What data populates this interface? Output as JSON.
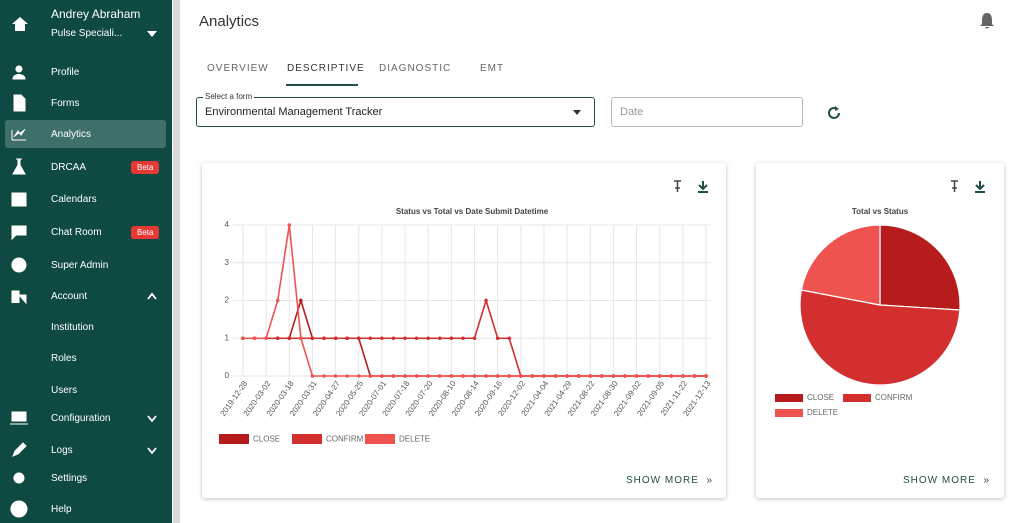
{
  "user": {
    "name": "Andrey Abraham",
    "org": "Pulse Speciali..."
  },
  "nav": [
    {
      "label": "Profile"
    },
    {
      "label": "Forms"
    },
    {
      "label": "Analytics",
      "active": true
    },
    {
      "label": "DRCAA",
      "badge": "Beta"
    },
    {
      "label": "Calendars"
    },
    {
      "label": "Chat Room",
      "badge": "Beta"
    },
    {
      "label": "Super Admin"
    },
    {
      "label": "Account",
      "expanded": true,
      "children": [
        {
          "label": "Institution"
        },
        {
          "label": "Roles"
        },
        {
          "label": "Users"
        }
      ]
    },
    {
      "label": "Configuration",
      "expanded": false
    },
    {
      "label": "Logs",
      "expanded": false
    },
    {
      "label": "Settings"
    },
    {
      "label": "Help"
    }
  ],
  "header": {
    "title": "Analytics"
  },
  "tabs": [
    {
      "label": "OVERVIEW"
    },
    {
      "label": "DESCRIPTIVE",
      "active": true
    },
    {
      "label": "DIAGNOSTIC"
    },
    {
      "label": "EMT"
    }
  ],
  "form": {
    "select_label": "Select a form",
    "select_value": "Environmental Management Tracker",
    "date_placeholder": "Date"
  },
  "cards": [
    {
      "action": "SHOW MORE"
    },
    {
      "action": "SHOW MORE"
    }
  ],
  "chart_data": [
    {
      "type": "line",
      "title": "Status vs Total vs Date Submit Datetime",
      "categories": [
        "2019-12-28",
        null,
        "2020-03-02",
        null,
        "2020-03-18",
        null,
        "2020-03-31",
        null,
        "2020-04-27",
        null,
        "2020-05-25",
        null,
        "2020-07-01",
        null,
        "2020-07-18",
        null,
        "2020-07-20",
        null,
        "2020-08-10",
        null,
        "2020-08-14",
        null,
        "2020-09-16",
        null,
        "2020-12-02",
        null,
        "2021-04-04",
        null,
        "2021-04-29",
        null,
        "2021-08-22",
        null,
        "2021-08-30",
        null,
        "2021-09-02",
        null,
        "2021-09-05",
        null,
        "2021-11-22",
        null,
        "2021-12-13"
      ],
      "series": [
        {
          "name": "CLOSE",
          "color": "#b71c1c",
          "values": [
            1,
            1,
            1,
            1,
            1,
            2,
            1,
            1,
            1,
            1,
            1,
            0,
            0,
            0,
            0,
            0,
            0,
            0,
            0,
            0,
            0,
            0,
            0,
            0,
            0,
            0,
            0,
            0,
            0,
            0,
            0,
            0,
            0,
            0,
            0,
            0,
            0,
            0,
            0,
            0,
            0
          ]
        },
        {
          "name": "CONFIRM",
          "color": "#d32f2f",
          "values": [
            1,
            1,
            1,
            1,
            1,
            1,
            1,
            1,
            1,
            1,
            1,
            1,
            1,
            1,
            1,
            1,
            1,
            1,
            1,
            1,
            1,
            2,
            1,
            1,
            0,
            0,
            0,
            0,
            0,
            0,
            0,
            0,
            0,
            0,
            0,
            0,
            0,
            0,
            0,
            0,
            0
          ]
        },
        {
          "name": "DELETE",
          "color": "#ef5350",
          "values": [
            1,
            1,
            1,
            2,
            4,
            1,
            0,
            0,
            0,
            0,
            0,
            0,
            0,
            0,
            0,
            0,
            0,
            0,
            0,
            0,
            0,
            0,
            0,
            0,
            0,
            0,
            0,
            0,
            0,
            0,
            0,
            0,
            0,
            0,
            0,
            0,
            0,
            0,
            0,
            0,
            0
          ]
        }
      ],
      "ylim": [
        0,
        4
      ],
      "yticks": [
        0,
        1,
        2,
        3,
        4
      ],
      "grid": true
    },
    {
      "type": "pie",
      "title": "Total vs Status",
      "categories": [
        "CLOSE",
        "CONFIRM",
        "DELETE"
      ],
      "values": [
        26,
        52,
        22
      ],
      "colors": [
        "#b71c1c",
        "#d32f2f",
        "#ef5350"
      ]
    }
  ]
}
